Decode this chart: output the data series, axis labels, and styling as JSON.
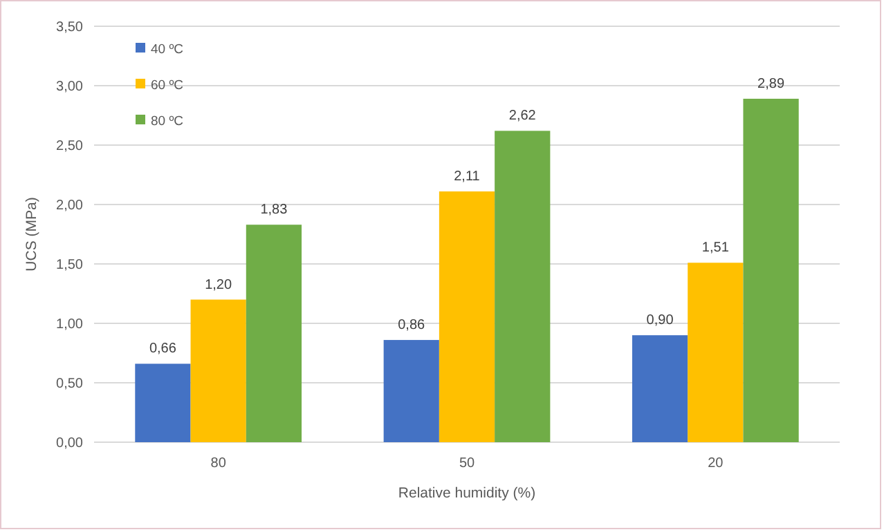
{
  "chart_data": {
    "type": "bar",
    "xlabel": "Relative humidity (%)",
    "ylabel": "UCS (MPa)",
    "categories": [
      "80",
      "50",
      "20"
    ],
    "series": [
      {
        "name": "40 ºC",
        "color": "#4472c4",
        "values": [
          0.66,
          0.86,
          0.9
        ],
        "value_labels": [
          "0,66",
          "0,86",
          "0,90"
        ]
      },
      {
        "name": "60 ºC",
        "color": "#ffc000",
        "values": [
          1.2,
          2.11,
          1.51
        ],
        "value_labels": [
          "1,20",
          "2,11",
          "1,51"
        ]
      },
      {
        "name": "80 ºC",
        "color": "#70ad47",
        "values": [
          1.83,
          2.62,
          2.89
        ],
        "value_labels": [
          "1,83",
          "2,62",
          "2,89"
        ]
      }
    ],
    "ylim": [
      0,
      3.5
    ],
    "yticks": [
      {
        "value": 0,
        "label": "0,00"
      },
      {
        "value": 0.5,
        "label": "0,50"
      },
      {
        "value": 1,
        "label": "1,00"
      },
      {
        "value": 1.5,
        "label": "1,50"
      },
      {
        "value": 2,
        "label": "2,00"
      },
      {
        "value": 2.5,
        "label": "2,50"
      },
      {
        "value": 3,
        "label": "3,00"
      },
      {
        "value": 3.5,
        "label": "3,50"
      }
    ],
    "grid": "y",
    "legend": "top left"
  }
}
